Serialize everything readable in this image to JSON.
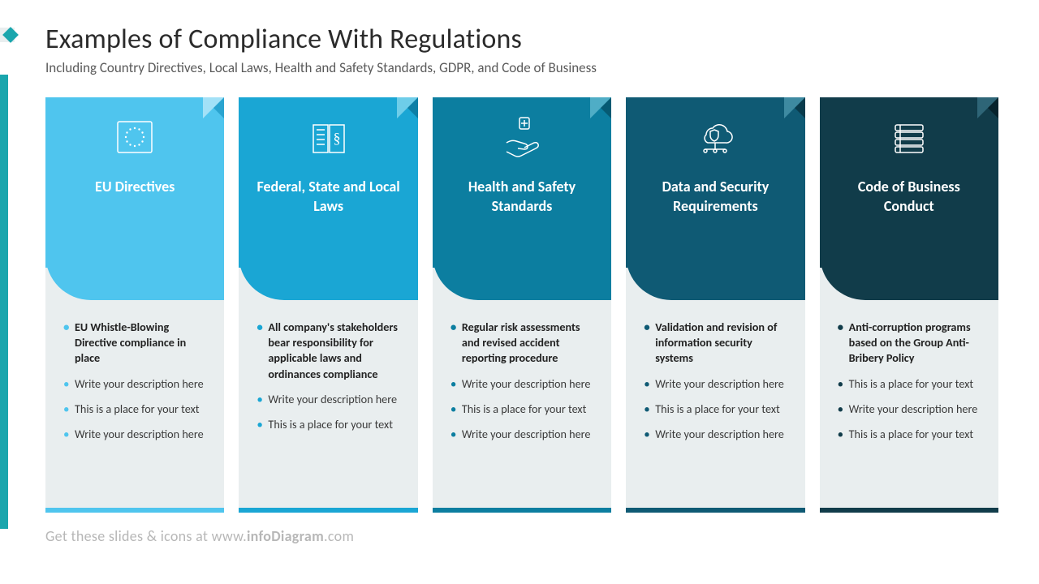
{
  "title": "Examples of Compliance With Regulations",
  "subtitle": "Including Country Directives, Local Laws, Health and Safety Standards, GDPR, and Code of Business",
  "footer_plain": "Get these slides & icons at www.",
  "footer_bold": "infoDiagram",
  "footer_tail": ".com",
  "columns": [
    {
      "title": "EU Directives",
      "header_color": "#4fc5ee",
      "fold_light": "#a3e1f7",
      "fold_dark": "#2aa4d0",
      "accent": "#4fc5ee",
      "bullet_color": "#4fc5ee",
      "items": [
        {
          "text": "EU Whistle-Blowing Directive compliance in place",
          "bold": true
        },
        {
          "text": "Write your description here",
          "bold": false
        },
        {
          "text": "This is a place for your text",
          "bold": false
        },
        {
          "text": "Write your description here",
          "bold": false
        }
      ]
    },
    {
      "title": "Federal, State and Local Laws",
      "header_color": "#1aa6d4",
      "fold_light": "#6ecde9",
      "fold_dark": "#0d7fa6",
      "accent": "#1aa6d4",
      "bullet_color": "#1aa6d4",
      "items": [
        {
          "text": "All company's stakeholders bear responsibility for applicable laws and ordinances compliance",
          "bold": true
        },
        {
          "text": "Write your description here",
          "bold": false
        },
        {
          "text": "This is a place for your text",
          "bold": false
        }
      ]
    },
    {
      "title": "Health and Safety Standards",
      "header_color": "#0c7ea0",
      "fold_light": "#4fadc6",
      "fold_dark": "#065a73",
      "accent": "#0c7ea0",
      "bullet_color": "#0c7ea0",
      "items": [
        {
          "text": "Regular risk assessments and revised accident reporting procedure",
          "bold": true
        },
        {
          "text": "Write your description here",
          "bold": false
        },
        {
          "text": "This is a place for your text",
          "bold": false
        },
        {
          "text": "Write your description here",
          "bold": false
        }
      ]
    },
    {
      "title": "Data and Security Requirements",
      "header_color": "#0f5a74",
      "fold_light": "#3e8aa1",
      "fold_dark": "#093b4c",
      "accent": "#0f5a74",
      "bullet_color": "#0f5a74",
      "items": [
        {
          "text": "Validation and revision of information security systems",
          "bold": true
        },
        {
          "text": "Write your description here",
          "bold": false
        },
        {
          "text": "This is a place for your text",
          "bold": false
        },
        {
          "text": "Write your description here",
          "bold": false
        }
      ]
    },
    {
      "title": "Code of Business Conduct",
      "header_color": "#113c4a",
      "fold_light": "#2e6577",
      "fold_dark": "#07232c",
      "accent": "#113c4a",
      "bullet_color": "#113c4a",
      "items": [
        {
          "text": "Anti-corruption programs based on the Group Anti-Bribery Policy",
          "bold": true
        },
        {
          "text": "This is a place for your text",
          "bold": false
        },
        {
          "text": "Write your description here",
          "bold": false
        },
        {
          "text": "This is a place for your text",
          "bold": false
        }
      ]
    }
  ]
}
